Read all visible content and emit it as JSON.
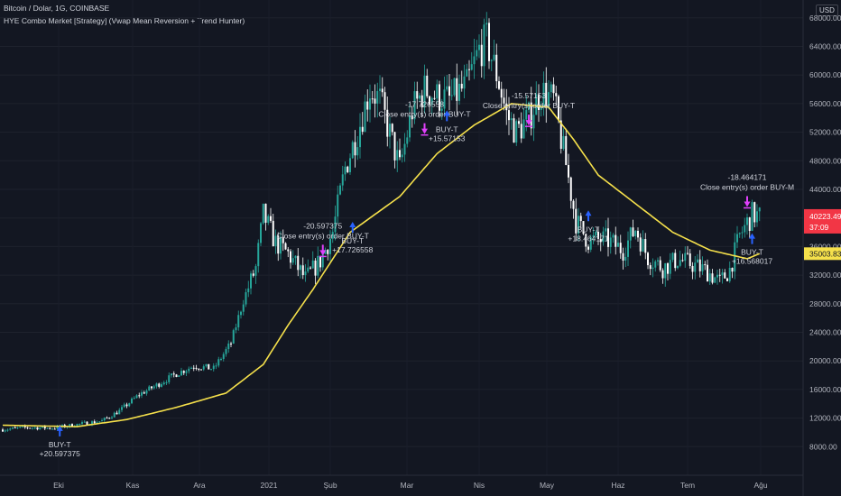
{
  "header": {
    "symbol_line": "Bitcoin / Dolar, 1G, COINBASE",
    "strategy_line": "HYE Combo Market [Strategy] (Vwap Mean Reversion + Trend Hunter)",
    "currency": "USD"
  },
  "colors": {
    "background": "#131722",
    "candle_up": "#26a69a",
    "candle_down": "#ffffff",
    "vwap": "#f5e04b",
    "buy_arrow": "#2962ff",
    "close_arrow": "#e040fb",
    "price_badge": "#f23645",
    "vwap_badge": "#f5e04b"
  },
  "chart_data": {
    "type": "candlestick",
    "y_axis": {
      "ticks": [
        8000,
        12000,
        16000,
        20000,
        24000,
        28000,
        32000,
        36000,
        40000,
        44000,
        48000,
        52000,
        56000,
        60000,
        64000,
        68000
      ],
      "tick_labels": [
        "8000.00",
        "12000.00",
        "16000.00",
        "20000.00",
        "24000.00",
        "28000.00",
        "32000.00",
        "36000.00",
        "40000.00",
        "44000.00",
        "48000.00",
        "52000.00",
        "56000.00",
        "60000.00",
        "64000.00",
        "68000.00"
      ],
      "range": [
        4000,
        70500
      ]
    },
    "x_axis": {
      "tick_labels": [
        "Eki",
        "Kas",
        "Ara",
        "2021",
        "Şub",
        "Mar",
        "Nis",
        "May",
        "Haz",
        "Tem",
        "Ağu"
      ],
      "bars_total": 310
    },
    "price_keyframes": [
      [
        0,
        10400
      ],
      [
        10,
        10700
      ],
      [
        20,
        10600
      ],
      [
        30,
        11100
      ],
      [
        40,
        11600
      ],
      [
        47,
        13000
      ],
      [
        55,
        15300
      ],
      [
        62,
        16600
      ],
      [
        70,
        18200
      ],
      [
        77,
        19300
      ],
      [
        85,
        18900
      ],
      [
        92,
        22500
      ],
      [
        97,
        28500
      ],
      [
        102,
        33000
      ],
      [
        105,
        40500
      ],
      [
        110,
        36500
      ],
      [
        115,
        35000
      ],
      [
        122,
        31500
      ],
      [
        128,
        34000
      ],
      [
        133,
        38000
      ],
      [
        138,
        47000
      ],
      [
        143,
        52000
      ],
      [
        148,
        58000
      ],
      [
        152,
        56500
      ],
      [
        160,
        47000
      ],
      [
        165,
        55000
      ],
      [
        170,
        58000
      ],
      [
        175,
        57000
      ],
      [
        180,
        56500
      ],
      [
        187,
        58500
      ],
      [
        192,
        63500
      ],
      [
        195,
        64800
      ],
      [
        200,
        59000
      ],
      [
        203,
        54500
      ],
      [
        207,
        52000
      ],
      [
        212,
        54000
      ],
      [
        217,
        57800
      ],
      [
        222,
        56500
      ],
      [
        227,
        47500
      ],
      [
        231,
        39500
      ],
      [
        236,
        36800
      ],
      [
        243,
        37000
      ],
      [
        250,
        35500
      ],
      [
        255,
        38500
      ],
      [
        260,
        34500
      ],
      [
        266,
        33000
      ],
      [
        272,
        34200
      ],
      [
        278,
        33500
      ],
      [
        284,
        32500
      ],
      [
        289,
        31000
      ],
      [
        293,
        32800
      ],
      [
        297,
        37500
      ],
      [
        302,
        40500
      ],
      [
        305,
        40223
      ]
    ],
    "vwap_keyframes": [
      [
        0,
        11000
      ],
      [
        30,
        10800
      ],
      [
        50,
        11800
      ],
      [
        70,
        13500
      ],
      [
        90,
        15500
      ],
      [
        105,
        19500
      ],
      [
        115,
        25000
      ],
      [
        125,
        30000
      ],
      [
        140,
        38000
      ],
      [
        160,
        43000
      ],
      [
        175,
        49000
      ],
      [
        190,
        53000
      ],
      [
        205,
        56000
      ],
      [
        220,
        55500
      ],
      [
        230,
        51000
      ],
      [
        240,
        46000
      ],
      [
        255,
        42000
      ],
      [
        270,
        38000
      ],
      [
        285,
        35500
      ],
      [
        300,
        34300
      ],
      [
        305,
        35000
      ]
    ],
    "last_price": {
      "label": "40223.49",
      "countdown": "37:09"
    },
    "vwap_last": {
      "label": "35003.83"
    },
    "trades": [
      {
        "kind": "buy",
        "bar": 23,
        "price": 9700,
        "lines": [
          "BUY-T",
          "+20.597375"
        ]
      },
      {
        "kind": "close",
        "bar": 129,
        "price": 36000,
        "lines": [
          "-20.597375",
          "Close entry(s) order BUY-T"
        ]
      },
      {
        "kind": "buy",
        "bar": 141,
        "price": 38200,
        "lines": [
          "BUY-T",
          "+17.726558"
        ]
      },
      {
        "kind": "close",
        "bar": 170,
        "price": 53000,
        "lines": [
          "-17.726558",
          "Close entry(s) order BUY-T"
        ]
      },
      {
        "kind": "buy",
        "bar": 179,
        "price": 53800,
        "lines": [
          "BUY-T",
          "+15.57153"
        ]
      },
      {
        "kind": "close",
        "bar": 212,
        "price": 54200,
        "lines": [
          "-15.57153",
          "Close entry(s) order BUY-T"
        ]
      },
      {
        "kind": "buy",
        "bar": 236,
        "price": 39800,
        "lines": [
          "BUY-T",
          "+18.464171"
        ]
      },
      {
        "kind": "close",
        "bar": 300,
        "price": 42800,
        "lines": [
          "-18.464171",
          "Close entry(s) order BUY-M"
        ]
      },
      {
        "kind": "buy",
        "bar": 302,
        "price": 36600,
        "lines": [
          "BUY-T",
          "+16.568017"
        ]
      }
    ]
  }
}
